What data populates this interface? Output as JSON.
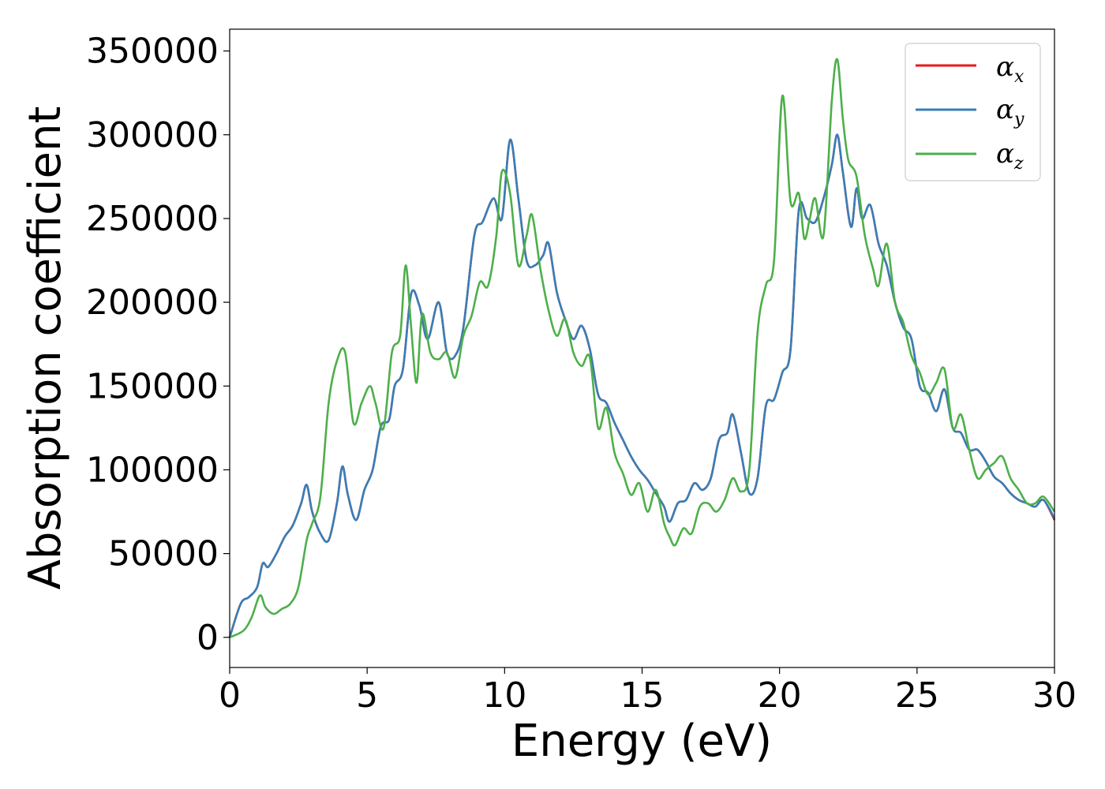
{
  "chart_data": {
    "type": "line",
    "xlabel": "Energy (eV)",
    "ylabel": "Absorption coefficient",
    "xlim": [
      0,
      30
    ],
    "ylim": [
      -18000,
      363000
    ],
    "xticks": [
      0,
      5,
      10,
      15,
      20,
      25,
      30
    ],
    "yticks": [
      0,
      50000,
      100000,
      150000,
      200000,
      250000,
      300000,
      350000
    ],
    "grid": false,
    "legend_position": "top-right",
    "series": [
      {
        "name": "α_x",
        "label_main": "α",
        "label_sub": "x",
        "color": "#e41a1c",
        "x": [
          0,
          0.4,
          0.7,
          1.0,
          1.2,
          1.4,
          1.7,
          2.0,
          2.3,
          2.6,
          2.8,
          3.0,
          3.3,
          3.6,
          3.9,
          4.1,
          4.3,
          4.6,
          4.9,
          5.2,
          5.5,
          5.8,
          6.0,
          6.3,
          6.6,
          6.9,
          7.2,
          7.6,
          7.9,
          8.2,
          8.5,
          8.9,
          9.2,
          9.6,
          9.9,
          10.2,
          10.5,
          10.8,
          11.1,
          11.4,
          11.6,
          11.9,
          12.2,
          12.5,
          12.8,
          13.1,
          13.4,
          13.7,
          14.0,
          14.3,
          14.6,
          14.9,
          15.2,
          15.5,
          15.8,
          16.0,
          16.3,
          16.6,
          16.9,
          17.2,
          17.5,
          17.8,
          18.1,
          18.3,
          18.6,
          18.9,
          19.2,
          19.5,
          19.8,
          20.1,
          20.4,
          20.7,
          21.0,
          21.3,
          21.6,
          21.9,
          22.1,
          22.3,
          22.6,
          22.8,
          23.0,
          23.3,
          23.6,
          23.9,
          24.2,
          24.5,
          24.8,
          25.1,
          25.4,
          25.7,
          26.0,
          26.3,
          26.6,
          26.9,
          27.2,
          27.5,
          27.8,
          28.1,
          28.4,
          28.7,
          29.0,
          29.3,
          29.6,
          30.0
        ],
        "y": [
          0,
          20000,
          24000,
          30000,
          44000,
          42000,
          50000,
          60000,
          67000,
          80000,
          91000,
          75000,
          62000,
          58000,
          80000,
          102000,
          85000,
          70000,
          88000,
          100000,
          126000,
          130000,
          150000,
          160000,
          205000,
          198000,
          178000,
          200000,
          170000,
          168000,
          185000,
          240000,
          248000,
          262000,
          250000,
          297000,
          262000,
          225000,
          222000,
          228000,
          235000,
          206000,
          190000,
          178000,
          186000,
          172000,
          145000,
          140000,
          128000,
          118000,
          108000,
          100000,
          94000,
          86000,
          78000,
          69000,
          80000,
          82000,
          92000,
          88000,
          95000,
          118000,
          122000,
          133000,
          110000,
          86000,
          95000,
          138000,
          142000,
          158000,
          172000,
          255000,
          250000,
          248000,
          262000,
          282000,
          300000,
          278000,
          245000,
          268000,
          250000,
          258000,
          235000,
          222000,
          200000,
          185000,
          178000,
          150000,
          146000,
          135000,
          148000,
          125000,
          122000,
          112000,
          112000,
          105000,
          96000,
          92000,
          86000,
          82000,
          80000,
          78000,
          82000,
          70000
        ]
      },
      {
        "name": "α_y",
        "label_main": "α",
        "label_sub": "y",
        "color": "#377eb8",
        "x": [
          0,
          0.4,
          0.7,
          1.0,
          1.2,
          1.4,
          1.7,
          2.0,
          2.3,
          2.6,
          2.8,
          3.0,
          3.3,
          3.6,
          3.9,
          4.1,
          4.3,
          4.6,
          4.9,
          5.2,
          5.5,
          5.8,
          6.0,
          6.3,
          6.6,
          6.9,
          7.2,
          7.6,
          7.9,
          8.2,
          8.5,
          8.9,
          9.2,
          9.6,
          9.9,
          10.2,
          10.5,
          10.8,
          11.1,
          11.4,
          11.6,
          11.9,
          12.2,
          12.5,
          12.8,
          13.1,
          13.4,
          13.7,
          14.0,
          14.3,
          14.6,
          14.9,
          15.2,
          15.5,
          15.8,
          16.0,
          16.3,
          16.6,
          16.9,
          17.2,
          17.5,
          17.8,
          18.1,
          18.3,
          18.6,
          18.9,
          19.2,
          19.5,
          19.8,
          20.1,
          20.4,
          20.7,
          21.0,
          21.3,
          21.6,
          21.9,
          22.1,
          22.3,
          22.6,
          22.8,
          23.0,
          23.3,
          23.6,
          23.9,
          24.2,
          24.5,
          24.8,
          25.1,
          25.4,
          25.7,
          26.0,
          26.3,
          26.6,
          26.9,
          27.2,
          27.5,
          27.8,
          28.1,
          28.4,
          28.7,
          29.0,
          29.3,
          29.6,
          30.0
        ],
        "y": [
          0,
          20000,
          24000,
          30000,
          44000,
          42000,
          50000,
          60000,
          67000,
          80000,
          91000,
          75000,
          62000,
          58000,
          80000,
          102000,
          85000,
          70000,
          88000,
          100000,
          126000,
          130000,
          150000,
          160000,
          205000,
          198000,
          178000,
          200000,
          170000,
          168000,
          185000,
          240000,
          248000,
          262000,
          250000,
          297000,
          262000,
          225000,
          222000,
          228000,
          235000,
          206000,
          190000,
          178000,
          186000,
          172000,
          145000,
          140000,
          128000,
          118000,
          108000,
          100000,
          94000,
          86000,
          78000,
          69000,
          80000,
          82000,
          92000,
          88000,
          95000,
          118000,
          122000,
          133000,
          110000,
          86000,
          95000,
          138000,
          142000,
          158000,
          172000,
          255000,
          250000,
          248000,
          262000,
          282000,
          300000,
          278000,
          245000,
          268000,
          250000,
          258000,
          235000,
          222000,
          200000,
          185000,
          178000,
          150000,
          146000,
          135000,
          148000,
          125000,
          122000,
          112000,
          112000,
          105000,
          96000,
          92000,
          86000,
          82000,
          80000,
          78000,
          82000,
          71000
        ]
      },
      {
        "name": "α_z",
        "label_main": "α",
        "label_sub": "z",
        "color": "#4daf4a",
        "x": [
          0,
          0.5,
          0.8,
          1.1,
          1.3,
          1.6,
          1.9,
          2.2,
          2.5,
          2.8,
          3.0,
          3.3,
          3.6,
          3.9,
          4.2,
          4.5,
          4.8,
          5.1,
          5.3,
          5.6,
          5.9,
          6.2,
          6.4,
          6.6,
          6.8,
          7.0,
          7.3,
          7.6,
          7.9,
          8.2,
          8.5,
          8.8,
          9.1,
          9.4,
          9.7,
          9.9,
          10.2,
          10.5,
          10.8,
          11.0,
          11.3,
          11.6,
          11.9,
          12.2,
          12.5,
          12.8,
          13.1,
          13.4,
          13.7,
          14.0,
          14.3,
          14.6,
          14.9,
          15.2,
          15.5,
          15.8,
          16.0,
          16.2,
          16.5,
          16.8,
          17.1,
          17.4,
          17.7,
          18.0,
          18.3,
          18.6,
          18.9,
          19.2,
          19.5,
          19.8,
          20.1,
          20.4,
          20.7,
          20.9,
          21.1,
          21.3,
          21.6,
          21.9,
          22.1,
          22.3,
          22.5,
          22.8,
          23.1,
          23.4,
          23.6,
          23.9,
          24.2,
          24.5,
          24.8,
          25.1,
          25.4,
          25.7,
          26.0,
          26.3,
          26.6,
          26.9,
          27.2,
          27.5,
          27.8,
          28.1,
          28.4,
          28.7,
          29.0,
          29.3,
          29.6,
          30.0
        ],
        "y": [
          0,
          4000,
          12000,
          25000,
          18000,
          14000,
          17000,
          20000,
          30000,
          58000,
          68000,
          84000,
          140000,
          165000,
          170000,
          128000,
          140000,
          150000,
          140000,
          125000,
          170000,
          180000,
          222000,
          185000,
          152000,
          193000,
          170000,
          166000,
          170000,
          155000,
          180000,
          192000,
          212000,
          210000,
          240000,
          278000,
          265000,
          222000,
          240000,
          252000,
          220000,
          195000,
          180000,
          190000,
          170000,
          162000,
          167000,
          125000,
          137000,
          110000,
          98000,
          85000,
          92000,
          75000,
          88000,
          68000,
          60000,
          55000,
          65000,
          62000,
          78000,
          80000,
          75000,
          82000,
          95000,
          87000,
          100000,
          182000,
          210000,
          225000,
          323000,
          260000,
          265000,
          238000,
          250000,
          262000,
          240000,
          320000,
          345000,
          310000,
          285000,
          275000,
          240000,
          220000,
          210000,
          235000,
          200000,
          188000,
          168000,
          158000,
          145000,
          152000,
          160000,
          125000,
          133000,
          112000,
          95000,
          100000,
          104000,
          108000,
          95000,
          88000,
          80000,
          80000,
          84000,
          75000
        ]
      }
    ]
  }
}
